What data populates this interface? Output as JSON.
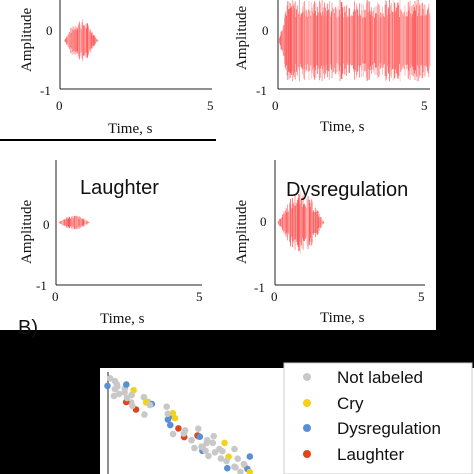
{
  "chart_data": [
    {
      "type": "area",
      "panel": "cry",
      "title": "",
      "xlabel": "Time, s",
      "ylabel": "Amplitude",
      "x_ticks": [
        "0",
        "5"
      ],
      "y_ticks": [
        "0",
        "-1"
      ],
      "xlim": [
        0,
        5
      ],
      "ylim": [
        -1,
        1
      ],
      "signal": {
        "start": 0.1,
        "end": 1.5,
        "peak": 0.45,
        "color": "#ff2020"
      }
    },
    {
      "type": "area",
      "panel": "cry-long",
      "title": "",
      "xlabel": "Time, s",
      "ylabel": "Amplitude",
      "x_ticks": [
        "0",
        "5"
      ],
      "y_ticks": [
        "0",
        "-1"
      ],
      "xlim": [
        0,
        5
      ],
      "ylim": [
        -1,
        1
      ],
      "signal": {
        "start": 0.0,
        "end": 5.0,
        "peak": 0.85,
        "color": "#ff2020"
      }
    },
    {
      "type": "area",
      "panel": "laughter",
      "title": "Laughter",
      "xlabel": "Time, s",
      "ylabel": "Amplitude",
      "x_ticks": [
        "0",
        "5"
      ],
      "y_ticks": [
        "0",
        "-1"
      ],
      "xlim": [
        0,
        5
      ],
      "ylim": [
        -1,
        1
      ],
      "signal": {
        "start": 0.05,
        "end": 1.4,
        "peak": 0.12,
        "color": "#ff2020"
      }
    },
    {
      "type": "area",
      "panel": "dysregulation",
      "title": "Dysregulation",
      "xlabel": "Time, s",
      "ylabel": "Amplitude",
      "x_ticks": [
        "0",
        "5"
      ],
      "y_ticks": [
        "0",
        "-1"
      ],
      "xlim": [
        0,
        5
      ],
      "ylim": [
        -1,
        1
      ],
      "signal": {
        "start": 0.05,
        "end": 2.0,
        "peak": 0.5,
        "color": "#ff2020"
      }
    },
    {
      "type": "scatter",
      "panel": "embedding",
      "title": "",
      "legend_position": "right",
      "series": [
        {
          "name": "Not labeled",
          "color": "#c8c8c8"
        },
        {
          "name": "Cry",
          "color": "#f2d21a"
        },
        {
          "name": "Dysregulation",
          "color": "#5a8fd6"
        },
        {
          "name": "Laughter",
          "color": "#e0441a"
        }
      ]
    }
  ],
  "section_letter": "B)"
}
